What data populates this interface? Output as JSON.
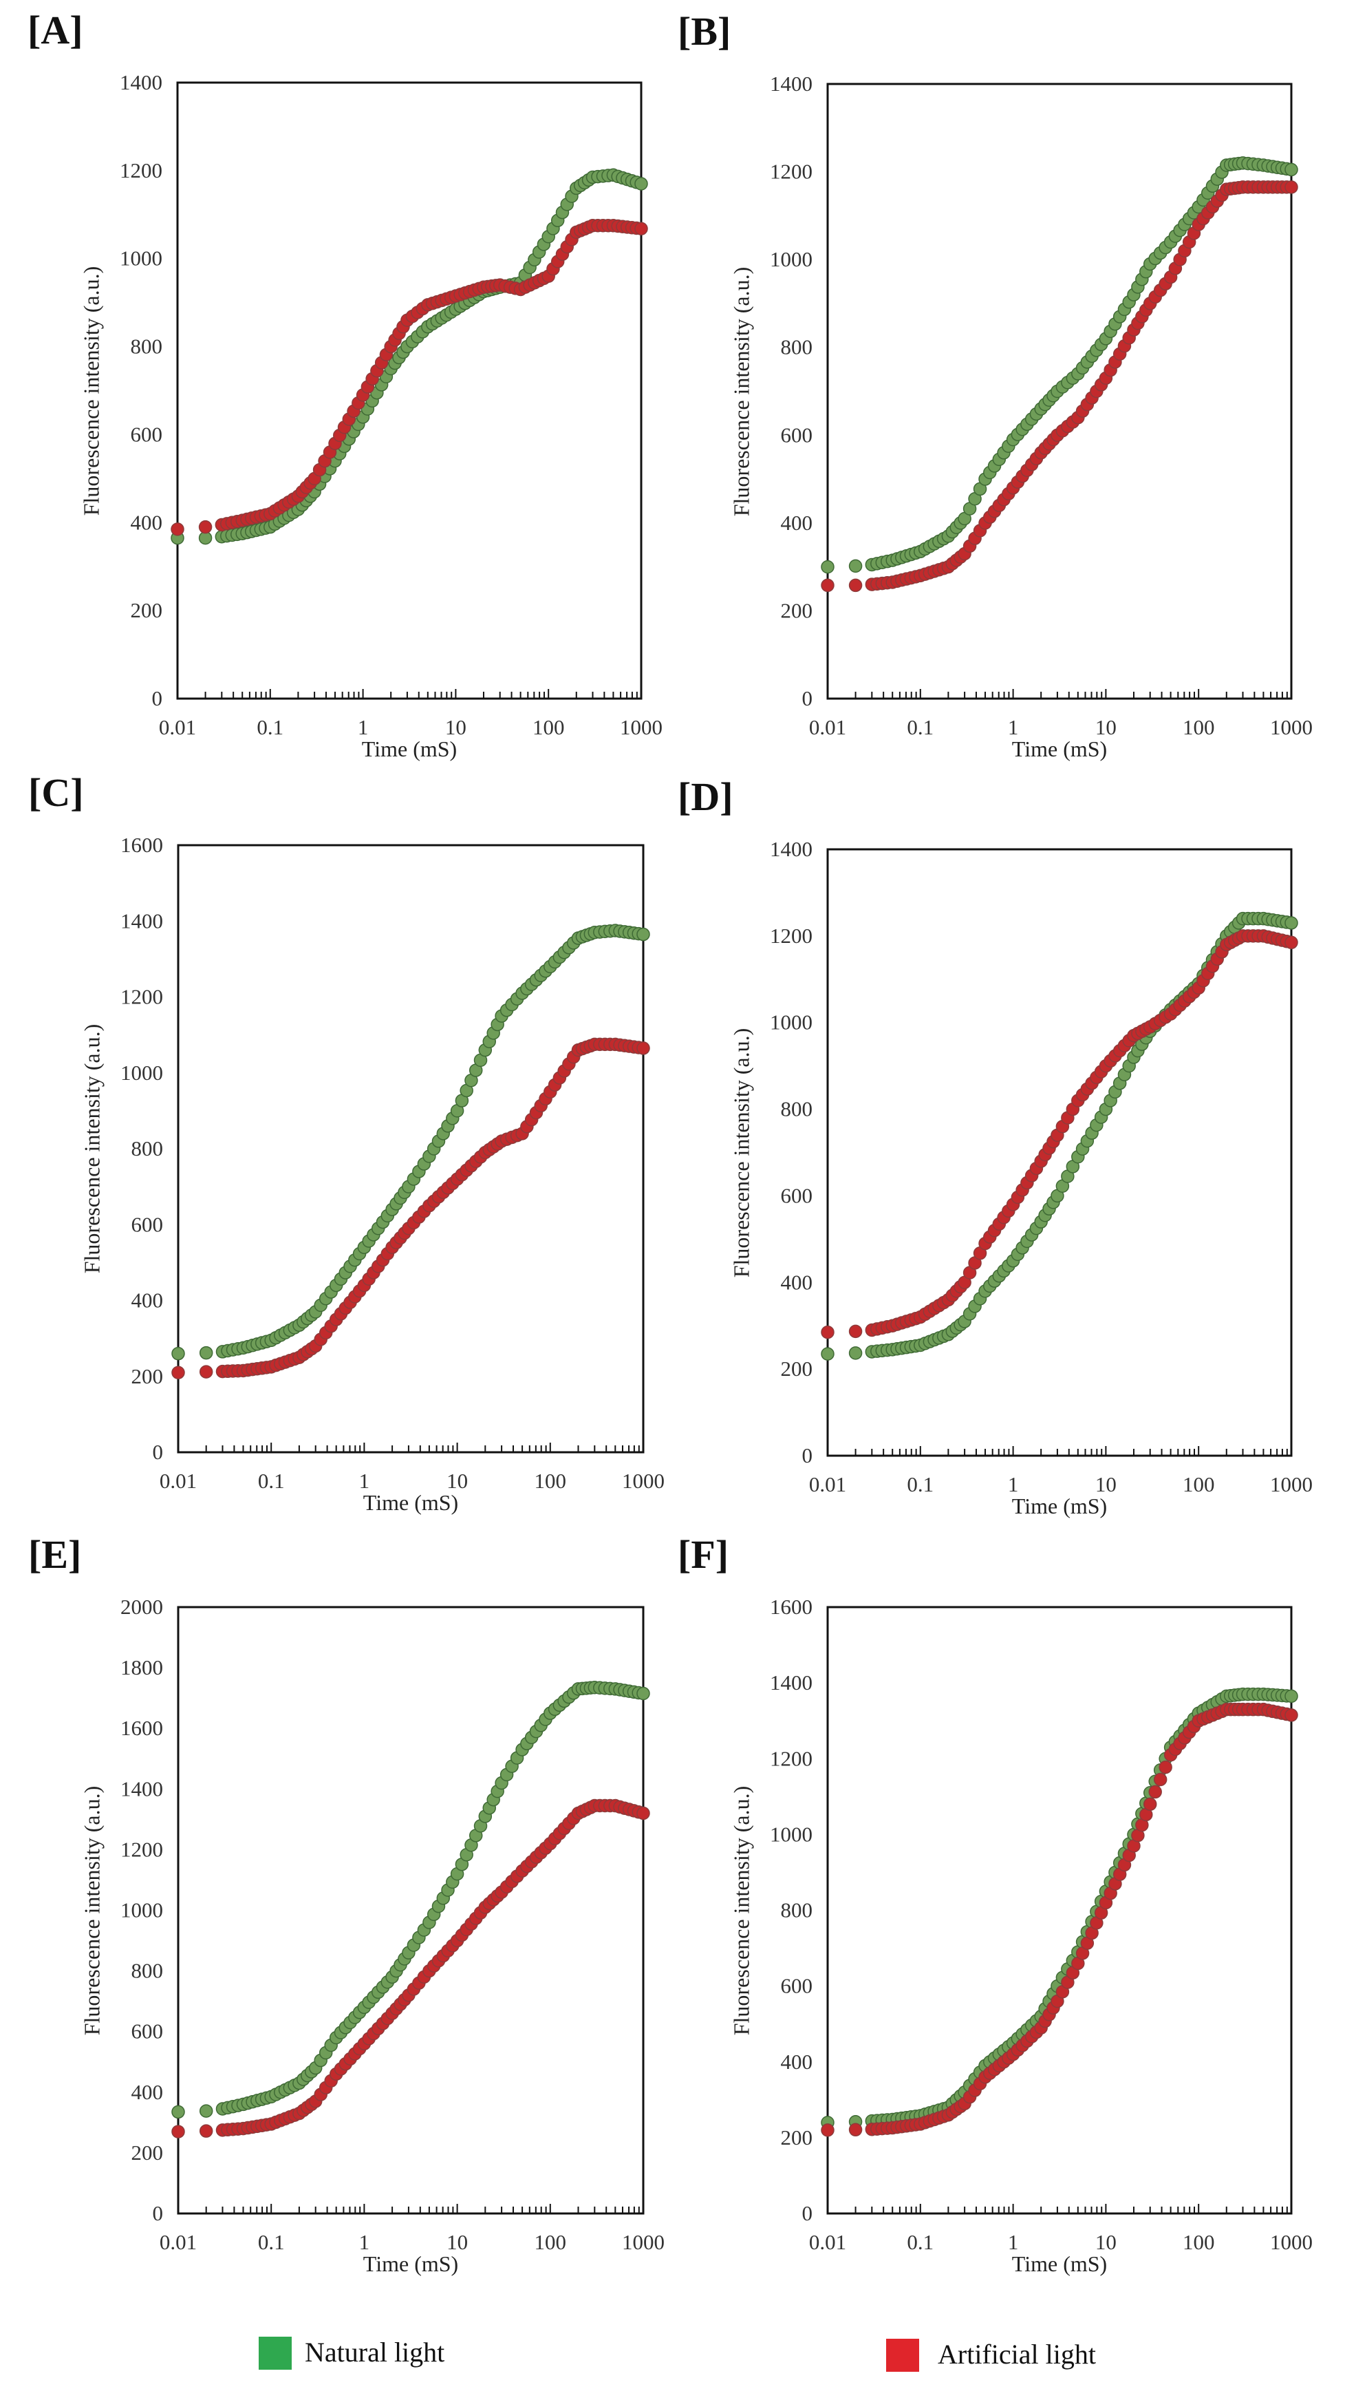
{
  "legend": {
    "natural": {
      "label": "Natural light",
      "color": "#2fa84f"
    },
    "artificial": {
      "label": "Artificial light",
      "color": "#e0252b"
    }
  },
  "chart_data": [
    {
      "panel": "[A]",
      "type": "scatter",
      "xlabel": "Time (mS)",
      "ylabel": "Fluorescence intensity (a.u.)",
      "xscale": "log",
      "xlim": [
        0.01,
        1000
      ],
      "ylim": [
        0,
        1400
      ],
      "ystep": 200,
      "xticks": [
        "0.01",
        "0.1",
        "1",
        "10",
        "100",
        "1000"
      ],
      "x": [
        0.01,
        0.02,
        0.03,
        0.05,
        0.1,
        0.2,
        0.3,
        0.5,
        1,
        2,
        3,
        5,
        10,
        20,
        30,
        50,
        100,
        200,
        300,
        500,
        1000
      ],
      "series": [
        {
          "name": "Natural light",
          "values": [
            365,
            365,
            368,
            375,
            390,
            430,
            470,
            540,
            640,
            750,
            800,
            845,
            885,
            925,
            935,
            945,
            1050,
            1160,
            1185,
            1190,
            1170
          ]
        },
        {
          "name": "Artificial light",
          "values": [
            385,
            390,
            395,
            405,
            420,
            460,
            500,
            580,
            690,
            800,
            860,
            895,
            915,
            935,
            940,
            930,
            960,
            1060,
            1075,
            1075,
            1068
          ]
        }
      ]
    },
    {
      "panel": "[B]",
      "type": "scatter",
      "xlabel": "Time (mS)",
      "ylabel": "Fluorescence intensity (a.u.)",
      "xscale": "log",
      "xlim": [
        0.01,
        1000
      ],
      "ylim": [
        0,
        1400
      ],
      "ystep": 200,
      "xticks": [
        "0.01",
        "0.1",
        "1",
        "10",
        "100",
        "1000"
      ],
      "x": [
        0.01,
        0.02,
        0.03,
        0.05,
        0.1,
        0.2,
        0.3,
        0.5,
        1,
        2,
        3,
        5,
        10,
        20,
        30,
        50,
        100,
        200,
        300,
        500,
        1000
      ],
      "series": [
        {
          "name": "Natural light",
          "values": [
            300,
            302,
            305,
            315,
            335,
            370,
            410,
            500,
            590,
            660,
            700,
            740,
            820,
            920,
            990,
            1040,
            1120,
            1215,
            1220,
            1215,
            1205
          ]
        },
        {
          "name": "Artificial light",
          "values": [
            258,
            258,
            260,
            265,
            280,
            300,
            330,
            400,
            480,
            560,
            600,
            640,
            730,
            840,
            900,
            960,
            1080,
            1160,
            1165,
            1165,
            1165
          ]
        }
      ]
    },
    {
      "panel": "[C]",
      "type": "scatter",
      "xlabel": "Time (mS)",
      "ylabel": "Fluorescence intensity (a.u.)",
      "xscale": "log",
      "xlim": [
        0.01,
        1000
      ],
      "ylim": [
        0,
        1600
      ],
      "ystep": 200,
      "xticks": [
        "0.01",
        "0.1",
        "1",
        "10",
        "100",
        "1000"
      ],
      "x": [
        0.01,
        0.02,
        0.03,
        0.05,
        0.1,
        0.2,
        0.3,
        0.5,
        1,
        2,
        3,
        5,
        10,
        20,
        30,
        50,
        100,
        200,
        300,
        500,
        1000
      ],
      "series": [
        {
          "name": "Natural light",
          "values": [
            260,
            262,
            265,
            275,
            295,
            335,
            370,
            440,
            540,
            640,
            700,
            780,
            900,
            1060,
            1150,
            1210,
            1280,
            1355,
            1370,
            1375,
            1365
          ]
        },
        {
          "name": "Artificial light",
          "values": [
            210,
            212,
            213,
            215,
            225,
            250,
            280,
            350,
            440,
            540,
            590,
            650,
            720,
            790,
            820,
            840,
            950,
            1060,
            1075,
            1075,
            1065
          ]
        }
      ]
    },
    {
      "panel": "[D]",
      "type": "scatter",
      "xlabel": "Time (mS)",
      "ylabel": "Fluorescence intensity (a.u.)",
      "xscale": "log",
      "xlim": [
        0.01,
        1000
      ],
      "ylim": [
        0,
        1400
      ],
      "ystep": 200,
      "xticks": [
        "0.01",
        "0.1",
        "1",
        "10",
        "100",
        "1000"
      ],
      "x": [
        0.01,
        0.02,
        0.03,
        0.05,
        0.1,
        0.2,
        0.3,
        0.5,
        1,
        2,
        3,
        5,
        10,
        20,
        30,
        50,
        100,
        200,
        300,
        500,
        1000
      ],
      "series": [
        {
          "name": "Natural light",
          "values": [
            235,
            237,
            240,
            245,
            255,
            280,
            310,
            380,
            450,
            540,
            600,
            690,
            800,
            920,
            980,
            1030,
            1090,
            1200,
            1240,
            1240,
            1230
          ]
        },
        {
          "name": "Artificial light",
          "values": [
            285,
            287,
            290,
            300,
            320,
            360,
            400,
            490,
            580,
            680,
            740,
            820,
            900,
            970,
            990,
            1020,
            1080,
            1180,
            1200,
            1200,
            1185
          ]
        }
      ]
    },
    {
      "panel": "[E]",
      "type": "scatter",
      "xlabel": "Time (mS)",
      "ylabel": "Fluorescence intensity (a.u.)",
      "xscale": "log",
      "xlim": [
        0.01,
        1000
      ],
      "ylim": [
        0,
        2000
      ],
      "ystep": 200,
      "xticks": [
        "0.01",
        "0.1",
        "1",
        "10",
        "100",
        "1000"
      ],
      "x": [
        0.01,
        0.02,
        0.03,
        0.05,
        0.1,
        0.2,
        0.3,
        0.5,
        1,
        2,
        3,
        5,
        10,
        20,
        30,
        50,
        100,
        200,
        300,
        500,
        1000
      ],
      "series": [
        {
          "name": "Natural light",
          "values": [
            335,
            338,
            345,
            360,
            385,
            430,
            480,
            580,
            680,
            780,
            860,
            960,
            1120,
            1310,
            1420,
            1530,
            1650,
            1730,
            1735,
            1730,
            1715
          ]
        },
        {
          "name": "Artificial light",
          "values": [
            270,
            272,
            275,
            280,
            295,
            330,
            370,
            460,
            560,
            660,
            720,
            800,
            900,
            1010,
            1060,
            1130,
            1220,
            1320,
            1345,
            1345,
            1320
          ]
        }
      ]
    },
    {
      "panel": "[F]",
      "type": "scatter",
      "xlabel": "Time (mS)",
      "ylabel": "Fluorescence intensity (a.u.)",
      "xscale": "log",
      "xlim": [
        0.01,
        1000
      ],
      "ylim": [
        0,
        1600
      ],
      "ystep": 200,
      "xticks": [
        "0.01",
        "0.1",
        "1",
        "10",
        "100",
        "1000"
      ],
      "x": [
        0.01,
        0.02,
        0.03,
        0.05,
        0.1,
        0.2,
        0.3,
        0.5,
        1,
        2,
        3,
        5,
        10,
        20,
        30,
        50,
        100,
        200,
        300,
        500,
        1000
      ],
      "series": [
        {
          "name": "Natural light",
          "values": [
            240,
            242,
            244,
            248,
            258,
            280,
            320,
            390,
            450,
            520,
            600,
            690,
            850,
            1000,
            1110,
            1230,
            1320,
            1365,
            1370,
            1370,
            1365
          ]
        },
        {
          "name": "Artificial light",
          "values": [
            220,
            221,
            222,
            226,
            236,
            260,
            290,
            360,
            420,
            490,
            560,
            660,
            820,
            970,
            1080,
            1210,
            1300,
            1330,
            1330,
            1330,
            1315
          ]
        }
      ]
    }
  ]
}
